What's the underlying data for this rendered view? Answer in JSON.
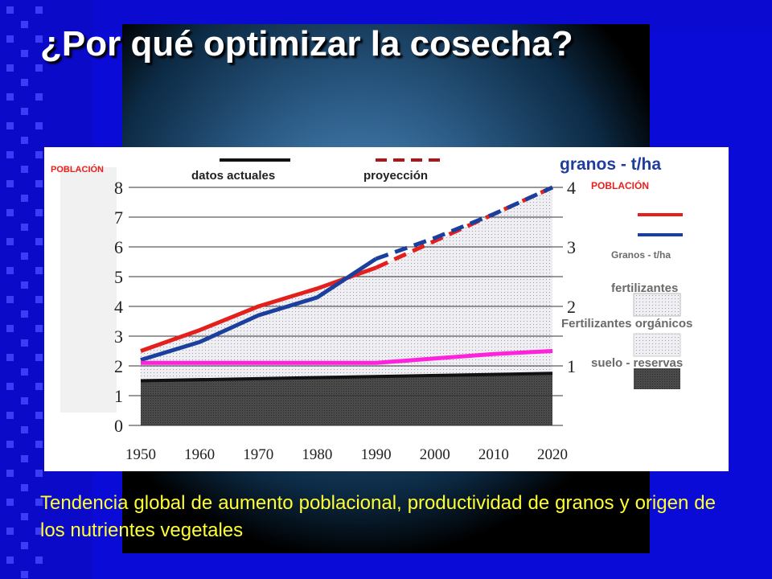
{
  "title": "¿Por qué optimizar la cosecha?",
  "caption": "Tendencia global de aumento poblacional, productividad de granos y origen de  los nutrientes vegetales",
  "colors": {
    "background": "#0b0bd8",
    "title": "#ffffff",
    "caption": "#ffff33",
    "poblacion_label": "#e8201c",
    "granos_label": "#1f3d9c",
    "legend_text": "#6a6a6a"
  },
  "chart_data": {
    "type": "line",
    "x_ticks": [
      1950,
      1960,
      1970,
      1980,
      1990,
      2000,
      2010,
      2020
    ],
    "left_axis": {
      "label": "POBLACIÓN",
      "ticks": [
        0,
        1,
        2,
        3,
        4,
        5,
        6,
        7,
        8
      ],
      "ylim": [
        0,
        8
      ]
    },
    "right_axis": {
      "ticks": [
        1,
        2,
        3,
        4
      ],
      "ylim": [
        0,
        4
      ]
    },
    "top_legend": {
      "actual": "datos actuales",
      "projection": "proyección"
    },
    "right_legend": {
      "heading": "granos - t/ha",
      "poblacion": "POBLACIÓN",
      "granos": "Granos - t/ha",
      "fertilizantes": "fertilizantes",
      "fertilizantes_organicos": "Fertilizantes orgánicos",
      "suelo_reservas": "suelo - reservas"
    },
    "series": [
      {
        "name": "POBLACIÓN",
        "color": "#e3201b",
        "axis": "left",
        "x": [
          1950,
          1960,
          1970,
          1980,
          1990,
          2000,
          2010,
          2020
        ],
        "y": [
          2.5,
          3.2,
          4.0,
          4.6,
          5.3,
          6.2,
          7.1,
          8.0
        ],
        "actual_until": 1990
      },
      {
        "name": "Granos - t/ha",
        "color": "#1b3f9e",
        "axis": "right",
        "x": [
          1950,
          1960,
          1970,
          1980,
          1990,
          2000,
          2010,
          2020
        ],
        "y": [
          1.1,
          1.4,
          1.85,
          2.15,
          2.8,
          3.15,
          3.55,
          4.0
        ],
        "actual_until": 1990
      },
      {
        "name": "fertilizantes",
        "color": "#ff22dd",
        "axis": "left",
        "kind": "area-boundary",
        "x": [
          1950,
          1960,
          1970,
          1980,
          1990,
          2000,
          2010,
          2020
        ],
        "y": [
          2.1,
          2.1,
          2.1,
          2.1,
          2.1,
          2.25,
          2.4,
          2.5
        ]
      },
      {
        "name": "suelo - reservas",
        "color": "#111111",
        "axis": "left",
        "kind": "area-boundary",
        "x": [
          1950,
          2020
        ],
        "y": [
          1.5,
          1.75
        ]
      }
    ]
  }
}
